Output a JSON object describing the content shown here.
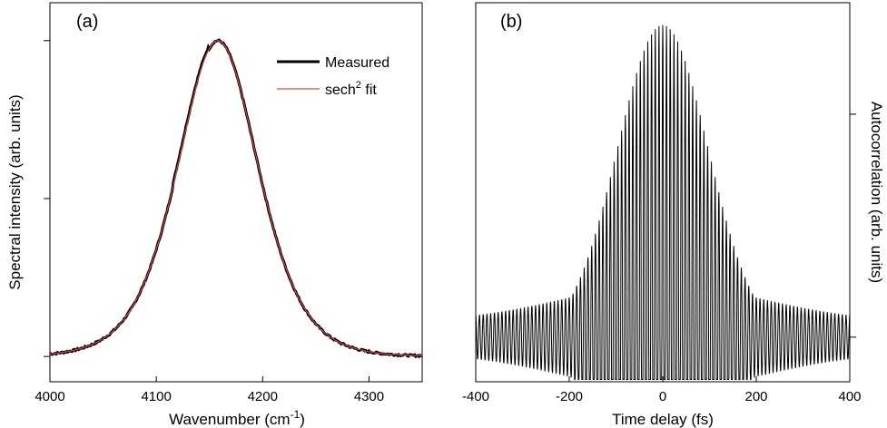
{
  "chart_data": [
    {
      "panel_label": "(a)",
      "type": "line",
      "xlabel_main": "Wavenumber (cm",
      "xlabel_sup": "-1",
      "xlabel_end": ")",
      "ylabel": "Spectral intensity (arb. units)",
      "xlim": [
        4000,
        4350
      ],
      "ylim": [
        -0.08,
        1.12
      ],
      "x_ticks": [
        "4000",
        "4100",
        "4200",
        "4300"
      ],
      "y_tick_values": [
        0,
        0.5,
        1.0
      ],
      "legend": {
        "placement": "top-right",
        "measured_label": "Measured",
        "fit_label_main": "sech",
        "fit_label_sup": "2",
        "fit_label_end": " fit"
      },
      "series": [
        {
          "name": "Measured",
          "color": "#000000",
          "center": 4158,
          "fwhm": 90,
          "amplitude": 1.0,
          "baseline": 0.0
        },
        {
          "name": "sech² fit",
          "color": "#e0484a",
          "center": 4158,
          "fwhm": 90,
          "amplitude": 1.0,
          "baseline": 0.0
        }
      ]
    },
    {
      "panel_label": "(b)",
      "type": "line",
      "xlabel": "Time delay (fs)",
      "ylabel": "Autocorrelation (arb. units)",
      "xlim": [
        -400,
        400
      ],
      "ylim": [
        0,
        8.5
      ],
      "x_ticks": [
        "-400",
        "-200",
        "0",
        "200",
        "400"
      ],
      "y_tick_values": [
        1,
        6
      ],
      "series": [
        {
          "name": "Autocorrelation",
          "color": "#000000",
          "baseline": 1.0,
          "peak": 8.0,
          "envelope_width_fs": 130,
          "fringe_period_fs": 8.0
        }
      ]
    }
  ]
}
